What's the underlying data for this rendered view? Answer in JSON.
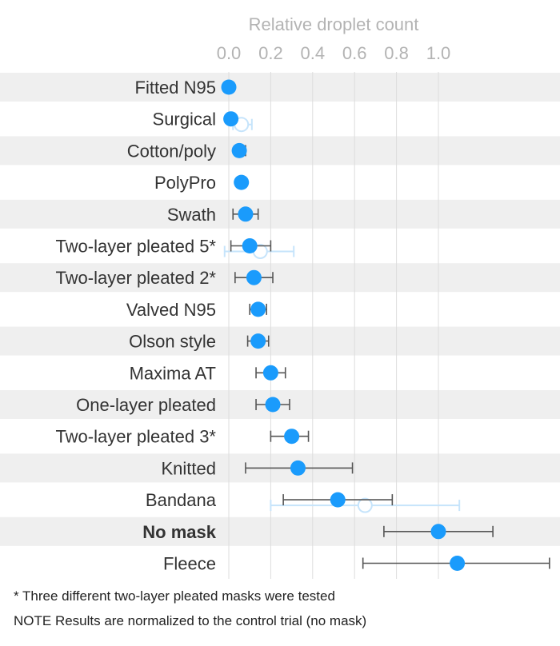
{
  "chart_data": {
    "type": "scatter",
    "title": "",
    "xlabel": "Relative droplet count",
    "ylabel": "",
    "xlim": [
      0.0,
      1.2
    ],
    "xticks": [
      0.0,
      0.2,
      0.4,
      0.6,
      0.8,
      1.0
    ],
    "xtick_labels": [
      "0.0",
      "0.2",
      "0.4",
      "0.6",
      "0.8",
      "1.0"
    ],
    "grid": true,
    "legend": "none",
    "categories": [
      "Fitted N95",
      "Surgical",
      "Cotton/poly",
      "PolyPro",
      "Swath",
      "Two-layer pleated 5*",
      "Two-layer pleated 2*",
      "Valved N95",
      "Olson style",
      "Maxima AT",
      "One-layer pleated",
      "Two-layer pleated 3*",
      "Knitted",
      "Bandana",
      "No mask",
      "Fleece"
    ],
    "highlighted_category": "No mask",
    "series": [
      {
        "marker": "filled",
        "color": "#1a9bfc",
        "values": [
          0.0,
          0.01,
          0.05,
          0.06,
          0.08,
          0.1,
          0.12,
          0.14,
          0.14,
          0.2,
          0.21,
          0.3,
          0.33,
          0.52,
          1.0,
          1.09
        ],
        "error_low": [
          0.0,
          0.0,
          0.04,
          0.06,
          0.02,
          0.01,
          0.03,
          0.1,
          0.09,
          0.13,
          0.13,
          0.2,
          0.08,
          0.26,
          0.74,
          0.64
        ],
        "error_high": [
          0.0,
          0.03,
          0.08,
          0.06,
          0.14,
          0.2,
          0.21,
          0.18,
          0.19,
          0.27,
          0.29,
          0.38,
          0.59,
          0.78,
          1.26,
          1.53
        ]
      },
      {
        "marker": "open",
        "color": "#c6e4fb",
        "values": [
          null,
          0.06,
          null,
          null,
          null,
          0.15,
          null,
          null,
          null,
          null,
          null,
          null,
          null,
          0.65,
          null,
          null
        ],
        "error_low": [
          null,
          0.02,
          null,
          null,
          null,
          -0.02,
          null,
          null,
          null,
          null,
          null,
          null,
          null,
          0.2,
          null,
          null
        ],
        "error_high": [
          null,
          0.11,
          null,
          null,
          null,
          0.31,
          null,
          null,
          null,
          null,
          null,
          null,
          null,
          1.1,
          null,
          null
        ]
      }
    ]
  },
  "footnotes": {
    "asterisk": "* Three different two-layer pleated masks were tested",
    "note": "NOTE Results are normalized to the control trial (no mask)"
  },
  "colors": {
    "stripe": "#efefef",
    "grid": "#dddddd",
    "error_bar": "#555555",
    "point": "#1a9bfc",
    "open_point": "#c6e4fb"
  }
}
